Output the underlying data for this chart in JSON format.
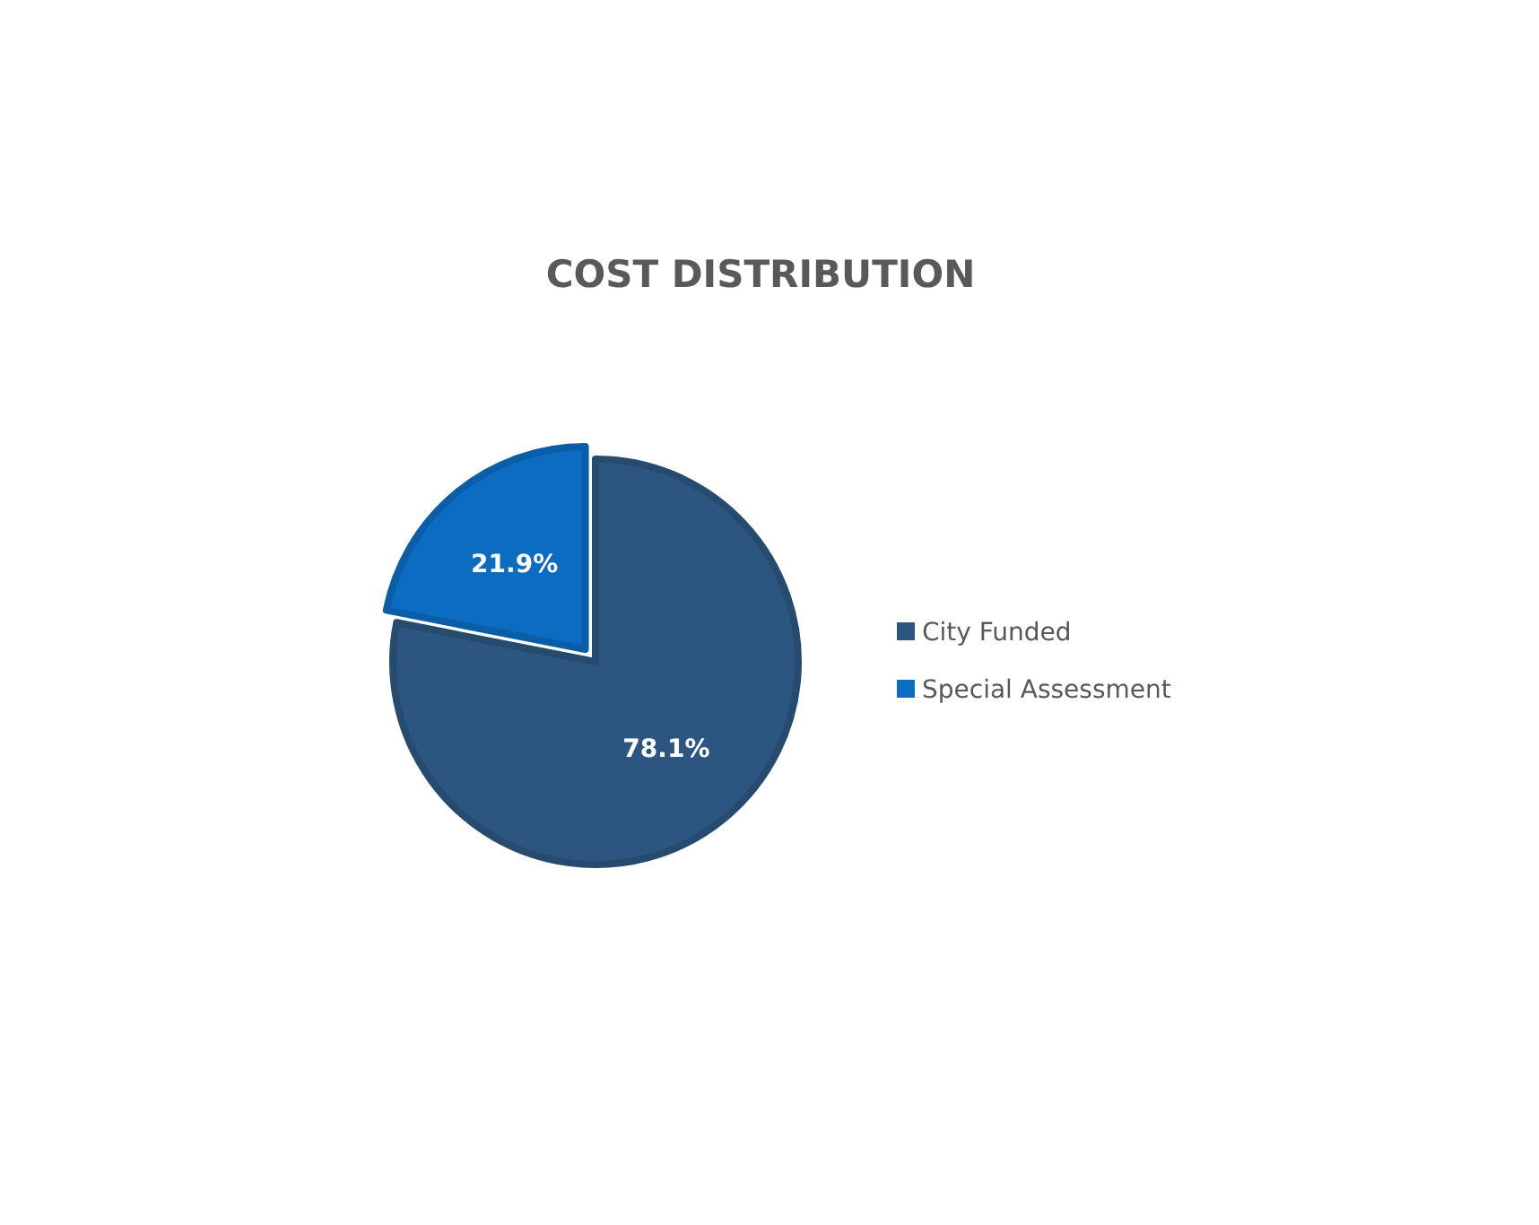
{
  "chart_data": {
    "type": "pie",
    "title": "COST DISTRIBUTION",
    "categories": [
      "City Funded",
      "Special Assessment"
    ],
    "values": [
      78.1,
      21.9
    ],
    "colors": [
      "#2c5680",
      "#0b6cc1"
    ],
    "value_labels": [
      "78.1%",
      "21.9%"
    ],
    "legend": "right"
  }
}
